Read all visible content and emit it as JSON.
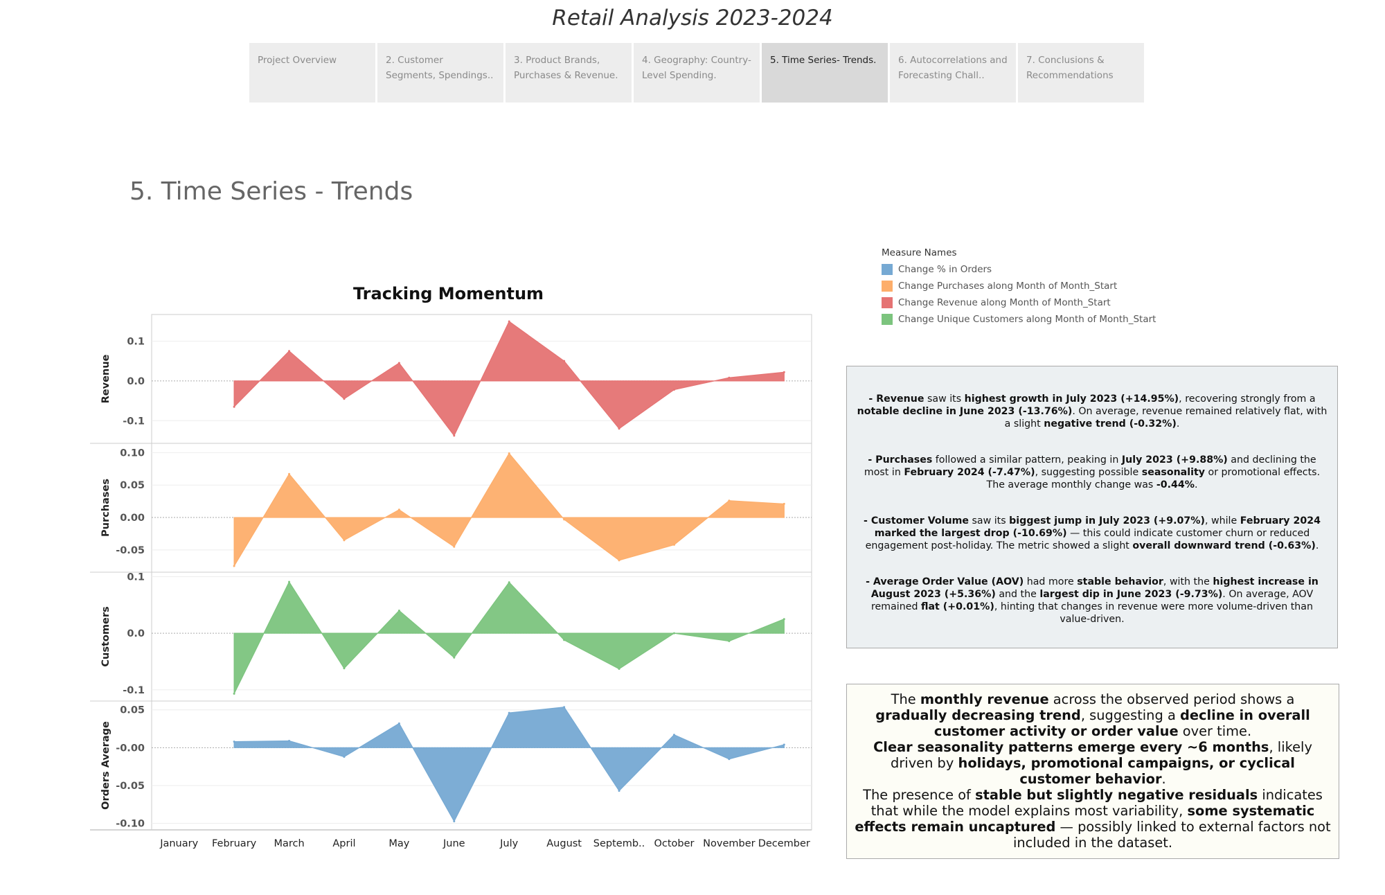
{
  "app_title": "Retail Analysis 2023-2024",
  "tabs": [
    {
      "label": "Project Overview",
      "active": false
    },
    {
      "label": "2. Customer Segments, Spendings..",
      "active": false
    },
    {
      "label": "3. Product Brands, Purchases & Revenue.",
      "active": false
    },
    {
      "label": "4. Geography: Country-Level Spending.",
      "active": false
    },
    {
      "label": "5. Time Series- Trends.",
      "active": true
    },
    {
      "label": "6. Autocorrelations and Forecasting Chall..",
      "active": false
    },
    {
      "label": "7. Conclusions & Recommendations",
      "active": false
    }
  ],
  "page_title": "5. Time Series - Trends",
  "legend": {
    "title": "Measure Names",
    "items": [
      {
        "label": "Change % in Orders",
        "color": "#76a9d3"
      },
      {
        "label": "Change Purchases along Month of Month_Start",
        "color": "#fdae6b"
      },
      {
        "label": "Change Revenue along Month of Month_Start",
        "color": "#e57373"
      },
      {
        "label": "Change Unique Customers along Month of Month_Start",
        "color": "#7cc47e"
      }
    ]
  },
  "chart_data": {
    "type": "area",
    "title": "Tracking Momentum",
    "categories": [
      "January",
      "February",
      "March",
      "April",
      "May",
      "June",
      "July",
      "August",
      "Septemb..",
      "October",
      "November",
      "December"
    ],
    "series": [
      {
        "name": "Revenue",
        "color": "#e57373",
        "values": [
          null,
          -0.065,
          0.075,
          -0.045,
          0.045,
          -0.1376,
          0.1495,
          0.05,
          -0.12,
          -0.022,
          0.008,
          0.022
        ],
        "ylim": [
          -0.15,
          0.16
        ],
        "ticks": [
          {
            "v": 0.1,
            "label": "0.1"
          },
          {
            "v": 0,
            "label": "0.0"
          },
          {
            "v": -0.1,
            "label": "-0.1"
          }
        ]
      },
      {
        "name": "Purchases",
        "color": "#fdae6b",
        "values": [
          null,
          -0.0747,
          0.067,
          -0.035,
          0.012,
          -0.045,
          0.0988,
          -0.003,
          -0.066,
          -0.042,
          0.026,
          0.021
        ],
        "ylim": [
          -0.08,
          0.11
        ],
        "ticks": [
          {
            "v": 0.1,
            "label": "0.10"
          },
          {
            "v": 0.05,
            "label": "0.05"
          },
          {
            "v": 0,
            "label": "0.00"
          },
          {
            "v": -0.05,
            "label": "-0.05"
          }
        ]
      },
      {
        "name": "Customers",
        "color": "#7cc47e",
        "values": [
          null,
          -0.1069,
          0.0907,
          -0.062,
          0.04,
          -0.043,
          0.09,
          -0.012,
          -0.063,
          0.0,
          -0.014,
          0.025
        ],
        "ylim": [
          -0.115,
          0.103
        ],
        "ticks": [
          {
            "v": 0.1,
            "label": "0.1"
          },
          {
            "v": 0,
            "label": "0.0"
          },
          {
            "v": -0.1,
            "label": "-0.1"
          }
        ]
      },
      {
        "name": "Orders Average",
        "color": "#76a9d3",
        "values": [
          null,
          0.008,
          0.009,
          -0.012,
          0.032,
          -0.0973,
          0.046,
          0.0536,
          -0.057,
          0.017,
          -0.015,
          0.004
        ],
        "ylim": [
          -0.105,
          0.058
        ],
        "ticks": [
          {
            "v": 0.05,
            "label": "0.05"
          },
          {
            "v": 0,
            "label": "-0.00"
          },
          {
            "v": -0.05,
            "label": "-0.05"
          },
          {
            "v": -0.1,
            "label": "-0.10"
          }
        ]
      }
    ]
  },
  "note1": {
    "paragraphs": [
      [
        {
          "t": "- Revenue",
          "b": true
        },
        {
          "t": " saw its "
        },
        {
          "t": "highest growth in July 2023 (+14.95%)",
          "b": true
        },
        {
          "t": ", recovering strongly from a "
        },
        {
          "t": "notable decline in June 2023 (-13.76%)",
          "b": true
        },
        {
          "t": ". On average, revenue remained relatively flat, with a slight "
        },
        {
          "t": "negative trend (-0.32%)",
          "b": true
        },
        {
          "t": "."
        }
      ],
      [
        {
          "t": "- Purchases",
          "b": true
        },
        {
          "t": " followed a similar pattern, peaking in "
        },
        {
          "t": "July 2023 (+9.88%)",
          "b": true
        },
        {
          "t": " and declining the most in "
        },
        {
          "t": "February 2024 (-7.47%)",
          "b": true
        },
        {
          "t": ", suggesting possible "
        },
        {
          "t": "seasonality",
          "b": true
        },
        {
          "t": " or promotional effects. The average monthly change was "
        },
        {
          "t": "-0.44%",
          "b": true
        },
        {
          "t": "."
        }
      ],
      [
        {
          "t": "- Customer Volume",
          "b": true
        },
        {
          "t": " saw its "
        },
        {
          "t": "biggest jump in July 2023 (+9.07%)",
          "b": true
        },
        {
          "t": ", while "
        },
        {
          "t": "February 2024 marked the largest drop (-10.69%)",
          "b": true
        },
        {
          "t": " — this could indicate customer churn or reduced engagement post-holiday. The metric showed a slight "
        },
        {
          "t": "overall downward trend (-0.63%)",
          "b": true
        },
        {
          "t": "."
        }
      ],
      [
        {
          "t": "- Average Order Value (AOV)",
          "b": true
        },
        {
          "t": " had more "
        },
        {
          "t": "stable behavior",
          "b": true
        },
        {
          "t": ", with the "
        },
        {
          "t": "highest increase in August 2023 (+5.36%)",
          "b": true
        },
        {
          "t": " and the "
        },
        {
          "t": "largest dip in June 2023 (-9.73%)",
          "b": true
        },
        {
          "t": ". On average, AOV remained "
        },
        {
          "t": "flat (+0.01%)",
          "b": true
        },
        {
          "t": ", hinting that changes in revenue were more volume-driven than value-driven."
        }
      ]
    ]
  },
  "note2": {
    "paragraphs": [
      [
        {
          "t": "The "
        },
        {
          "t": "monthly revenue",
          "b": true
        },
        {
          "t": " across the observed period shows a "
        },
        {
          "t": "gradually decreasing trend",
          "b": true
        },
        {
          "t": ", suggesting a "
        },
        {
          "t": "decline in overall customer activity or order value",
          "b": true
        },
        {
          "t": " over time."
        }
      ],
      [
        {
          "t": "Clear seasonality patterns emerge every ~6 months",
          "b": true
        },
        {
          "t": ", likely driven by "
        },
        {
          "t": "holidays, promotional campaigns, or cyclical customer behavior",
          "b": true
        },
        {
          "t": "."
        }
      ],
      [
        {
          "t": "The presence of "
        },
        {
          "t": "stable but slightly negative residuals",
          "b": true
        },
        {
          "t": " indicates that while the model explains most variability, "
        },
        {
          "t": "some systematic effects remain uncaptured",
          "b": true
        },
        {
          "t": " — possibly linked to external factors not included in the dataset."
        }
      ]
    ]
  }
}
